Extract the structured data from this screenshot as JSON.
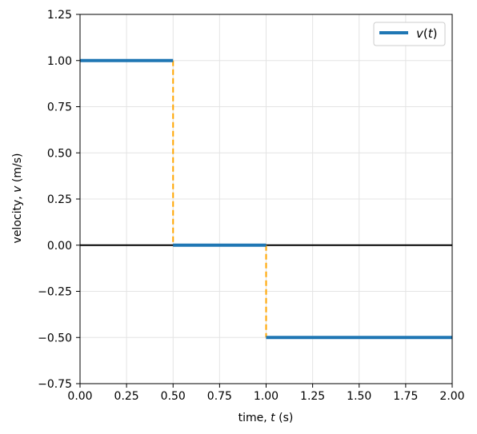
{
  "chart_data": {
    "type": "line",
    "title": "",
    "xlabel_prefix": "time, ",
    "xlabel_var": "t",
    "xlabel_suffix": " (s)",
    "ylabel_prefix": "velocity, ",
    "ylabel_var": "v",
    "ylabel_suffix": " (m/s)",
    "xlim": [
      0,
      2
    ],
    "ylim": [
      -0.75,
      1.25
    ],
    "xticks": [
      0,
      0.25,
      0.5,
      0.75,
      1.0,
      1.25,
      1.5,
      1.75,
      2.0
    ],
    "xtick_labels": [
      "0.00",
      "0.25",
      "0.50",
      "0.75",
      "1.00",
      "1.25",
      "1.50",
      "1.75",
      "2.00"
    ],
    "yticks": [
      -0.75,
      -0.5,
      -0.25,
      0,
      0.25,
      0.5,
      0.75,
      1.0,
      1.25
    ],
    "ytick_labels": [
      "−0.75",
      "−0.50",
      "−0.25",
      "0.00",
      "0.25",
      "0.50",
      "0.75",
      "1.00",
      "1.25"
    ],
    "grid": true,
    "zero_line": 0,
    "legend": {
      "placement": "top-right",
      "label_var": "v",
      "label_arg": "t"
    },
    "series": [
      {
        "name": "v(t)",
        "color": "#1f77b4",
        "segments": [
          {
            "x": [
              0,
              0.5
            ],
            "y": [
              1,
              1
            ]
          },
          {
            "x": [
              0.5,
              1.0
            ],
            "y": [
              0,
              0
            ]
          },
          {
            "x": [
              1.0,
              2.0
            ],
            "y": [
              -0.5,
              -0.5
            ]
          }
        ]
      }
    ],
    "jumps": {
      "color": "#ffa500",
      "style": "dashed",
      "lines": [
        {
          "x": 0.5,
          "y": [
            1,
            0
          ]
        },
        {
          "x": 1.0,
          "y": [
            0,
            -0.5
          ]
        }
      ]
    }
  }
}
